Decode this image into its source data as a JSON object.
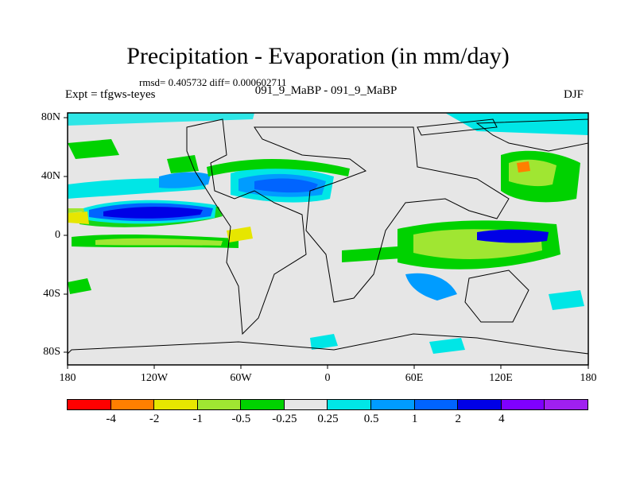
{
  "title": "Precipitation - Evaporation (in mm/day)",
  "stats": "rmsd= 0.405732 diff= 0.000602711",
  "subtitle": "091_9_MaBP - 091_9_MaBP",
  "experiment": "Expt = tfgws-teyes",
  "season": "DJF",
  "map": {
    "background_color": "#e6e6e6",
    "lat_labels": [
      "80N",
      "40N",
      "0",
      "40S",
      "80S"
    ],
    "lon_labels": [
      "180",
      "120W",
      "60W",
      "0",
      "60E",
      "120E",
      "180"
    ]
  },
  "colorbar": {
    "colors": [
      "#ff0000",
      "#ff7f00",
      "#e6e600",
      "#a0e632",
      "#00d200",
      "#e6e6e6",
      "#00e6e6",
      "#009cff",
      "#0064ff",
      "#0000e6",
      "#7f00ff",
      "#a020f0"
    ],
    "labels": [
      "-4",
      "-2",
      "-1",
      "-0.5",
      "-0.25",
      "0.25",
      "0.5",
      "1",
      "2",
      "4"
    ]
  },
  "palette": {
    "frame": "#000000",
    "coast": "#000000"
  }
}
